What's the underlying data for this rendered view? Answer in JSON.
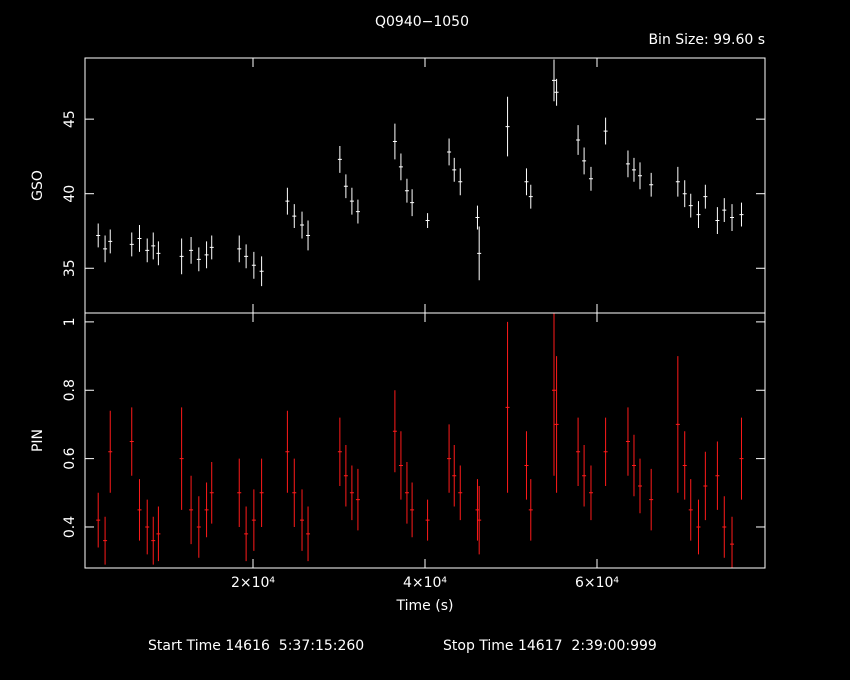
{
  "chart_data": {
    "type": "errorbar",
    "title": "Q0940−1050",
    "subtitle": "Bin Size: 99.60 s",
    "xlabel": "Time (s)",
    "footer": [
      "Start Time 14616  5:37:15:260",
      "Stop Time 14617  2:39:00:999"
    ],
    "xlim": [
      465,
      79535
    ],
    "xticks": [
      {
        "value": 20000,
        "label": "2×10⁴"
      },
      {
        "value": 40000,
        "label": "4×10⁴"
      },
      {
        "value": 60000,
        "label": "6×10⁴"
      }
    ],
    "x": [
      2000,
      2800,
      3400,
      5900,
      6800,
      7700,
      8400,
      9000,
      11700,
      12800,
      13700,
      14600,
      15200,
      18400,
      19200,
      20100,
      21000,
      24000,
      24800,
      25700,
      26400,
      30100,
      30800,
      31500,
      32200,
      36500,
      37200,
      37900,
      38500,
      40300,
      42800,
      43400,
      44100,
      46100,
      46300,
      49600,
      51800,
      52300,
      55000,
      55300,
      57800,
      58500,
      59300,
      61000,
      63600,
      64300,
      65000,
      66300,
      69400,
      70200,
      70900,
      71800,
      72600,
      74000,
      74800,
      75700,
      76800
    ],
    "panels": [
      {
        "ylabel": "GSO",
        "color": "#ffffff",
        "ylim": [
          32,
          49.1
        ],
        "yticks": [
          35,
          40,
          45
        ],
        "values": [
          37.2,
          36.3,
          36.8,
          36.6,
          37.0,
          36.2,
          36.5,
          36.0,
          35.8,
          36.2,
          35.6,
          35.9,
          36.4,
          36.3,
          35.8,
          35.2,
          34.8,
          39.5,
          38.5,
          37.9,
          37.2,
          42.3,
          40.5,
          39.5,
          38.8,
          43.5,
          41.8,
          40.2,
          39.4,
          38.2,
          42.8,
          41.6,
          40.8,
          38.4,
          36.0,
          44.5,
          40.8,
          39.8,
          47.6,
          46.8,
          43.6,
          42.2,
          41.0,
          44.2,
          42.0,
          41.6,
          41.2,
          40.6,
          40.8,
          40.0,
          39.2,
          38.6,
          39.8,
          38.2,
          38.9,
          38.4,
          38.6
        ],
        "errors": [
          0.8,
          0.9,
          0.8,
          0.8,
          0.9,
          0.8,
          0.9,
          0.8,
          1.2,
          0.9,
          0.8,
          0.9,
          0.8,
          0.9,
          0.8,
          0.9,
          1.0,
          0.9,
          0.8,
          0.9,
          1.0,
          0.9,
          0.8,
          0.9,
          0.8,
          1.2,
          0.9,
          0.8,
          0.9,
          0.5,
          0.9,
          0.8,
          0.9,
          0.8,
          1.8,
          2.0,
          0.9,
          0.8,
          1.4,
          0.9,
          1.0,
          0.9,
          0.8,
          0.9,
          0.9,
          0.8,
          0.9,
          0.8,
          1.0,
          0.9,
          0.8,
          0.9,
          0.8,
          0.9,
          0.8,
          0.9,
          0.8
        ]
      },
      {
        "ylabel": "PIN",
        "color": "#ff1a1a",
        "ylim": [
          0.28,
          1.026
        ],
        "yticks": [
          0.4,
          0.6,
          0.8,
          1
        ],
        "values": [
          0.42,
          0.36,
          0.62,
          0.65,
          0.45,
          0.4,
          0.36,
          0.38,
          0.6,
          0.45,
          0.4,
          0.45,
          0.5,
          0.5,
          0.38,
          0.42,
          0.5,
          0.62,
          0.5,
          0.42,
          0.38,
          0.62,
          0.55,
          0.5,
          0.48,
          0.68,
          0.58,
          0.5,
          0.45,
          0.42,
          0.6,
          0.55,
          0.5,
          0.45,
          0.42,
          0.75,
          0.58,
          0.45,
          0.8,
          0.7,
          0.62,
          0.55,
          0.5,
          0.62,
          0.65,
          0.58,
          0.52,
          0.48,
          0.7,
          0.58,
          0.45,
          0.4,
          0.52,
          0.55,
          0.4,
          0.35,
          0.6
        ],
        "errors": [
          0.08,
          0.07,
          0.12,
          0.1,
          0.09,
          0.08,
          0.07,
          0.08,
          0.15,
          0.1,
          0.09,
          0.08,
          0.09,
          0.1,
          0.08,
          0.09,
          0.1,
          0.12,
          0.1,
          0.09,
          0.08,
          0.1,
          0.09,
          0.08,
          0.09,
          0.12,
          0.1,
          0.09,
          0.08,
          0.06,
          0.1,
          0.09,
          0.08,
          0.09,
          0.1,
          0.25,
          0.1,
          0.09,
          0.25,
          0.2,
          0.1,
          0.09,
          0.08,
          0.1,
          0.1,
          0.09,
          0.08,
          0.09,
          0.2,
          0.1,
          0.09,
          0.08,
          0.1,
          0.1,
          0.09,
          0.08,
          0.12
        ]
      }
    ]
  }
}
